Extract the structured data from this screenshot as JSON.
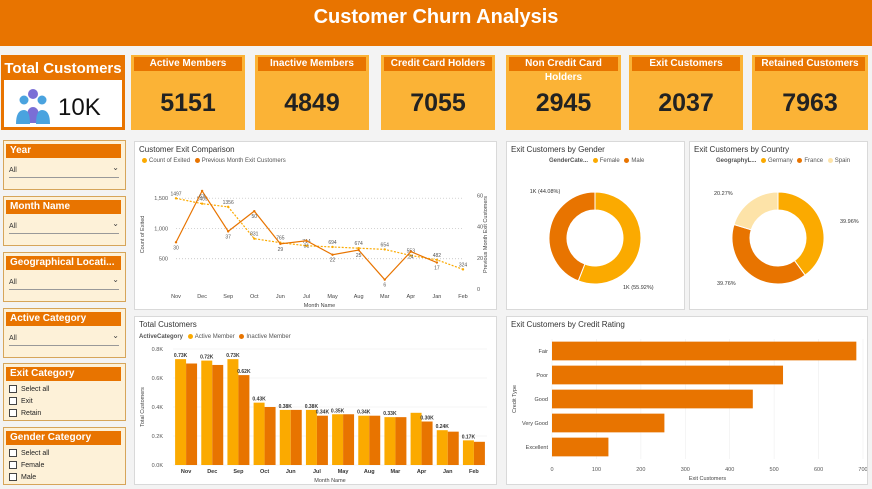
{
  "header": {
    "title": "Customer Churn Analysis"
  },
  "kpis": {
    "total": {
      "label": "Total Customers",
      "value": "10K",
      "icon": "people-group-icon"
    },
    "cards": [
      {
        "label": "Active Members",
        "value": "5151"
      },
      {
        "label": "Inactive Members",
        "value": "4849"
      },
      {
        "label": "Credit Card Holders",
        "value": "7055"
      },
      {
        "label": "Non Credit Card Holders",
        "value": "2945"
      },
      {
        "label": "Exit Customers",
        "value": "2037"
      },
      {
        "label": "Retained Customers",
        "value": "7963"
      }
    ]
  },
  "slicers": {
    "year": {
      "title": "Year",
      "value": "All"
    },
    "month": {
      "title": "Month Name",
      "value": "All"
    },
    "geo": {
      "title": "Geographical Locati...",
      "value": "All"
    },
    "active": {
      "title": "Active Category",
      "value": "All"
    },
    "exit": {
      "title": "Exit Category",
      "options": [
        "Select all",
        "Exit",
        "Retain"
      ]
    },
    "gender": {
      "title": "Gender Category",
      "options": [
        "Select all",
        "Female",
        "Male"
      ]
    }
  },
  "colors": {
    "orange": "#e87400",
    "gold": "#fbaa00",
    "light": "#fde3a8",
    "header": "#e87400"
  },
  "chart_data": [
    {
      "type": "line",
      "title": "Customer Exit Comparison",
      "xlabel": "Month Name",
      "ylabel": "Count of Exited",
      "y2label": "Previous Month Exit Customers",
      "categories": [
        "Nov",
        "Dec",
        "Sep",
        "Oct",
        "Jun",
        "Jul",
        "May",
        "Aug",
        "Mar",
        "Apr",
        "Jan",
        "Feb"
      ],
      "series": [
        {
          "name": "Count of Exited",
          "values": [
            30,
            63,
            37,
            50,
            29,
            31,
            22,
            25,
            6,
            24,
            17,
            null
          ],
          "labels": [
            "30",
            "63",
            "37",
            "50",
            "29",
            "31",
            "22",
            "25",
            "6",
            "24",
            "17",
            ""
          ]
        },
        {
          "name": "Previous Month Exit Customers",
          "values": [
            1497,
            1409,
            1356,
            831,
            765,
            714,
            694,
            674,
            654,
            553,
            482,
            324
          ],
          "labels": [
            "1497",
            "1409",
            "1356",
            "831",
            "765",
            "714",
            "694",
            "674",
            "654",
            "553",
            "482",
            "324"
          ]
        }
      ],
      "y_ticks": [
        "1,500",
        "1,000",
        "500"
      ],
      "y2_ticks": [
        "60",
        "40",
        "20",
        "0"
      ],
      "legend": "top-left"
    },
    {
      "type": "pie",
      "title": "Exit Customers by Gender",
      "legend_title": "GenderCate...",
      "categories": [
        "Female",
        "Male"
      ],
      "values": [
        55.92,
        44.08
      ],
      "labels": [
        "1K (55.92%)",
        "1K (44.08%)"
      ]
    },
    {
      "type": "pie",
      "title": "Exit Customers by Country",
      "legend_title": "GeographyL...",
      "categories": [
        "Germany",
        "France",
        "Spain"
      ],
      "values": [
        39.96,
        39.76,
        20.27
      ],
      "labels": [
        "39.96%",
        "39.76%",
        "20.27%"
      ]
    },
    {
      "type": "bar",
      "title": "Total Customers",
      "legend_title": "ActiveCategory",
      "xlabel": "Month Name",
      "ylabel": "Total Customers",
      "categories": [
        "Nov",
        "Dec",
        "Sep",
        "Oct",
        "Jun",
        "Jul",
        "May",
        "Aug",
        "Mar",
        "Apr",
        "Jan",
        "Feb"
      ],
      "series": [
        {
          "name": "Active Member",
          "values": [
            0.73,
            0.72,
            0.73,
            0.43,
            0.38,
            0.38,
            0.35,
            0.34,
            0.33,
            0.36,
            0.24,
            0.17
          ]
        },
        {
          "name": "Inactive Member",
          "values": [
            0.7,
            0.69,
            0.62,
            0.4,
            0.38,
            0.34,
            0.35,
            0.34,
            0.33,
            0.3,
            0.23,
            0.16
          ]
        }
      ],
      "data_labels": [
        "0.73K",
        "0.72K",
        "0.73K",
        "0.43K",
        "0.38K",
        "0.38K",
        "0.35K",
        "0.34K",
        "0.33K",
        "",
        "0.24K",
        "0.17K"
      ],
      "extra_labels": [
        {
          "index": 2,
          "text": "0.62K"
        },
        {
          "index": 5,
          "text": "0.34K"
        },
        {
          "index": 9,
          "text": "0.30K"
        }
      ],
      "y_ticks": [
        "0.8K",
        "0.6K",
        "0.4K",
        "0.2K",
        "0.0K"
      ],
      "ylim": [
        0,
        0.8
      ]
    },
    {
      "type": "bar",
      "title": "Exit Customers by Credit Rating",
      "xlabel": "Exit Customers",
      "ylabel": "Credit Type",
      "categories": [
        "Fair",
        "Poor",
        "Good",
        "Very Good",
        "Excellent"
      ],
      "values": [
        685,
        520,
        452,
        253,
        127
      ],
      "x_ticks": [
        "0",
        "100",
        "200",
        "300",
        "400",
        "500",
        "600",
        "700"
      ],
      "xlim": [
        0,
        700
      ]
    }
  ]
}
